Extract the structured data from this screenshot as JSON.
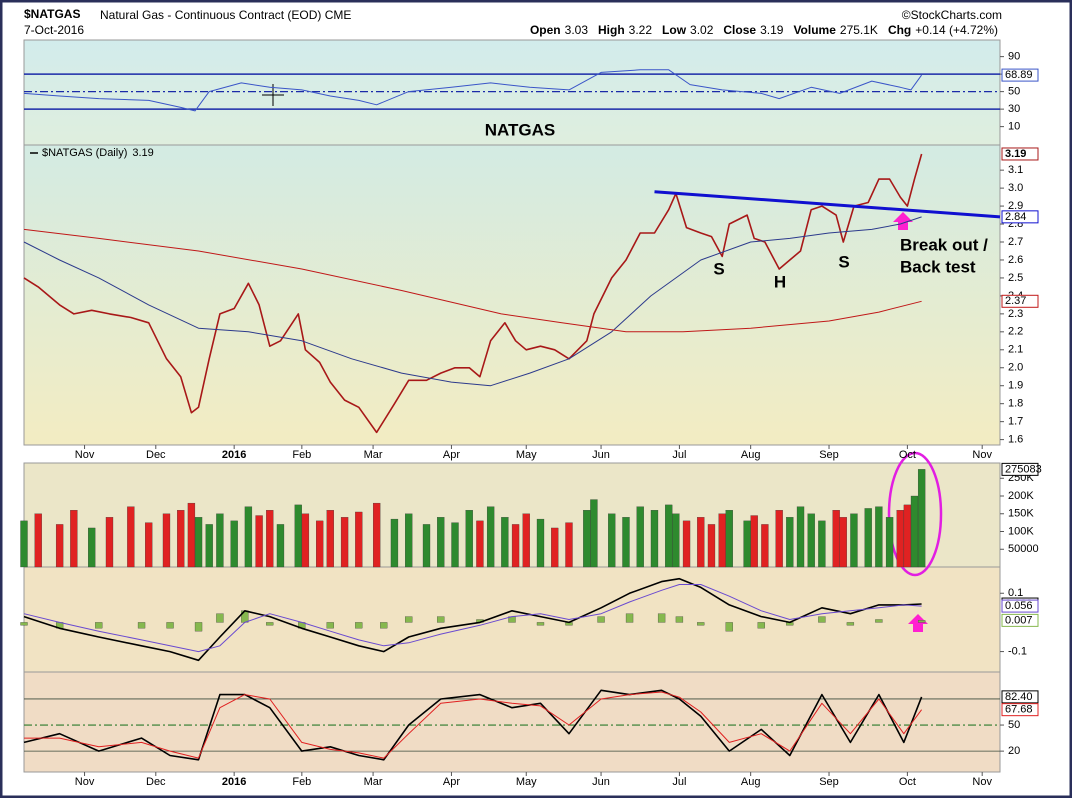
{
  "header": {
    "symbol": "$NATGAS",
    "name": "Natural Gas - Continuous Contract (EOD) CME",
    "date": "7-Oct-2016",
    "source": "©StockCharts.com",
    "quote": [
      {
        "label": "Open",
        "value": "3.03"
      },
      {
        "label": "High",
        "value": "3.22"
      },
      {
        "label": "Low",
        "value": "3.02"
      },
      {
        "label": "Close",
        "value": "3.19"
      },
      {
        "label": "Volume",
        "value": "275.1K"
      },
      {
        "label": "Chg",
        "value": "+0.14 (+4.72%)"
      }
    ]
  },
  "chart_data": [
    {
      "type": "line",
      "annotations": [
        "NATGAS"
      ],
      "xlim": [
        0,
        274
      ],
      "ylim": [
        -11,
        109
      ],
      "yticks": [
        10,
        30,
        50,
        70,
        90
      ],
      "bands": [
        30,
        70
      ],
      "midline": 50,
      "series": [
        {
          "color": "#3a55c8",
          "x": [
            0,
            10,
            21,
            35,
            44,
            48,
            52,
            61,
            69,
            78,
            86,
            94,
            99,
            108,
            120,
            131,
            142,
            153,
            162,
            173,
            181,
            187,
            196,
            207,
            212,
            221,
            229,
            238,
            246,
            249,
            252
          ],
          "values": [
            48,
            45,
            42,
            40,
            32,
            28,
            50,
            60,
            55,
            52,
            45,
            40,
            35,
            50,
            55,
            60,
            55,
            52,
            72,
            75,
            75,
            58,
            52,
            48,
            42,
            55,
            48,
            62,
            55,
            52,
            68.89
          ]
        }
      ]
    },
    {
      "type": "line",
      "annotations": [
        "S",
        "H",
        "S",
        "Break out /",
        "Back test"
      ],
      "xlim": [
        0,
        274
      ],
      "ylim": [
        1.57,
        3.24
      ],
      "yticks": [
        1.6,
        1.7,
        1.8,
        1.9,
        {
          "value": 2,
          "label": "2.0"
        },
        2.1,
        2.2,
        2.3,
        2.4,
        2.5,
        2.6,
        2.7,
        2.8,
        2.9,
        {
          "value": 3,
          "label": "3.0"
        },
        3.1
      ],
      "xticks": [
        {
          "value": 17,
          "label": "Nov"
        },
        {
          "value": 37,
          "label": "Dec"
        },
        {
          "value": 59,
          "label": "2016"
        },
        {
          "value": 78,
          "label": "Feb"
        },
        {
          "value": 98,
          "label": "Mar"
        },
        {
          "value": 120,
          "label": "Apr"
        },
        {
          "value": 141,
          "label": "May"
        },
        {
          "value": 162,
          "label": "Jun"
        },
        {
          "value": 184,
          "label": "Jul"
        },
        {
          "value": 204,
          "label": "Aug"
        },
        {
          "value": 226,
          "label": "Sep"
        },
        {
          "value": 248,
          "label": "Oct"
        },
        {
          "value": 269,
          "label": "Nov"
        }
      ],
      "series": [
        {
          "name": "$NATGAS (Daily)",
          "color": "#a81818",
          "width": 1.6,
          "x": [
            0,
            4,
            10,
            14,
            19,
            24,
            30,
            35,
            40,
            44,
            47,
            49,
            52,
            55,
            59,
            63,
            66,
            69,
            72,
            77,
            79,
            83,
            86,
            90,
            94,
            99,
            104,
            108,
            113,
            117,
            121,
            125,
            128,
            131,
            135,
            138,
            141,
            145,
            149,
            153,
            158,
            160,
            165,
            169,
            173,
            177,
            181,
            183,
            186,
            190,
            193,
            196,
            198,
            203,
            205,
            208,
            212,
            215,
            218,
            221,
            224,
            228,
            230,
            233,
            237,
            240,
            243,
            246,
            248,
            250,
            252
          ],
          "values": [
            2.5,
            2.45,
            2.35,
            2.3,
            2.32,
            2.3,
            2.28,
            2.25,
            2.05,
            1.95,
            1.75,
            1.78,
            2.05,
            2.3,
            2.33,
            2.47,
            2.35,
            2.12,
            2.15,
            2.3,
            2.1,
            2.03,
            1.92,
            1.82,
            1.78,
            1.64,
            1.8,
            1.93,
            1.93,
            1.97,
            2.0,
            2.0,
            1.95,
            2.15,
            2.25,
            2.15,
            2.1,
            2.12,
            2.1,
            2.05,
            2.15,
            2.3,
            2.5,
            2.6,
            2.75,
            2.75,
            2.88,
            2.97,
            2.78,
            2.75,
            2.73,
            2.62,
            2.8,
            2.85,
            2.72,
            2.7,
            2.55,
            2.6,
            2.65,
            2.88,
            2.9,
            2.85,
            2.7,
            2.9,
            2.92,
            3.05,
            3.05,
            2.95,
            2.9,
            3.05,
            3.19
          ]
        },
        {
          "color": "#2c3a8c",
          "width": 1,
          "x": [
            0,
            10,
            21,
            35,
            49,
            63,
            78,
            92,
            106,
            120,
            131,
            142,
            153,
            165,
            176,
            190,
            204,
            215,
            226,
            238,
            246,
            252
          ],
          "values": [
            2.7,
            2.6,
            2.5,
            2.35,
            2.22,
            2.2,
            2.15,
            2.05,
            1.97,
            1.92,
            1.9,
            1.97,
            2.05,
            2.2,
            2.4,
            2.6,
            2.7,
            2.72,
            2.75,
            2.77,
            2.8,
            2.84
          ]
        },
        {
          "color": "#c01818",
          "width": 1,
          "x": [
            0,
            21,
            49,
            78,
            106,
            134,
            151,
            169,
            185,
            204,
            226,
            240,
            252
          ],
          "values": [
            2.77,
            2.72,
            2.65,
            2.55,
            2.43,
            2.3,
            2.25,
            2.2,
            2.2,
            2.22,
            2.26,
            2.31,
            2.37
          ]
        },
        {
          "color": "#1010d0",
          "width": 3,
          "x": [
            177,
            274
          ],
          "values": [
            2.98,
            2.84
          ]
        }
      ]
    },
    {
      "type": "bar",
      "xlim": [
        0,
        274
      ],
      "ylim": [
        0,
        293000
      ],
      "yticks": [
        50000,
        {
          "value": 100000,
          "label": "100K"
        },
        {
          "value": 150000,
          "label": "150K"
        },
        {
          "value": 200000,
          "label": "200K"
        },
        {
          "value": 250000,
          "label": "250K"
        }
      ],
      "up_color": "#2e8a2e",
      "down_color": "#e02222",
      "series": [
        {
          "color": "#2e8a2e",
          "x": [
            0,
            4,
            10,
            14,
            19,
            24,
            30,
            35,
            40,
            44,
            47,
            49,
            52,
            55,
            59,
            63,
            66,
            69,
            72,
            77,
            79,
            83,
            86,
            90,
            94,
            99,
            104,
            108,
            113,
            117,
            121,
            125,
            128,
            131,
            135,
            138,
            141,
            145,
            149,
            153,
            158,
            160,
            165,
            169,
            173,
            177,
            181,
            183,
            186,
            190,
            193,
            196,
            198,
            203,
            205,
            208,
            212,
            215,
            218,
            221,
            224,
            228,
            230,
            233,
            237,
            240,
            243,
            246,
            248,
            250,
            252
          ],
          "values": [
            130000,
            150000,
            120000,
            160000,
            110000,
            140000,
            170000,
            125000,
            150000,
            160000,
            180000,
            140000,
            120000,
            150000,
            130000,
            170000,
            145000,
            160000,
            120000,
            175000,
            150000,
            130000,
            160000,
            140000,
            155000,
            180000,
            135000,
            150000,
            120000,
            140000,
            125000,
            160000,
            130000,
            170000,
            140000,
            120000,
            150000,
            135000,
            110000,
            125000,
            160000,
            190000,
            150000,
            140000,
            170000,
            160000,
            175000,
            150000,
            130000,
            140000,
            120000,
            150000,
            160000,
            130000,
            145000,
            120000,
            160000,
            140000,
            170000,
            150000,
            130000,
            160000,
            140000,
            150000,
            165000,
            170000,
            140000,
            160000,
            175000,
            200000,
            275083
          ]
        }
      ]
    },
    {
      "type": "macd",
      "xlim": [
        0,
        274
      ],
      "ylim": [
        -0.17,
        0.19
      ],
      "yticks": [
        -0.1,
        0.1
      ],
      "series": [
        {
          "kind": "histogram",
          "color": "#86b84e",
          "x": [
            0,
            10,
            21,
            33,
            41,
            49,
            55,
            62,
            69,
            78,
            86,
            94,
            101,
            108,
            117,
            128,
            137,
            145,
            153,
            162,
            170,
            179,
            184,
            190,
            198,
            207,
            215,
            224,
            232,
            240,
            247,
            252
          ],
          "values": [
            -0.01,
            -0.02,
            -0.02,
            -0.02,
            -0.02,
            -0.03,
            0.03,
            0.04,
            -0.01,
            -0.02,
            -0.02,
            -0.02,
            -0.02,
            0.02,
            0.02,
            0.01,
            0.02,
            -0.01,
            -0.01,
            0.02,
            0.03,
            0.03,
            0.02,
            -0.01,
            -0.03,
            -0.02,
            -0.01,
            0.02,
            -0.01,
            0.01,
            0,
            0.007
          ]
        },
        {
          "color": "#000000",
          "width": 1.6,
          "x": [
            0,
            10,
            21,
            33,
            41,
            49,
            55,
            62,
            69,
            78,
            86,
            94,
            101,
            108,
            117,
            128,
            137,
            145,
            153,
            162,
            170,
            179,
            184,
            190,
            198,
            207,
            215,
            224,
            232,
            240,
            247,
            252
          ],
          "values": [
            0.02,
            -0.02,
            -0.05,
            -0.08,
            -0.1,
            -0.13,
            -0.05,
            0.04,
            0.02,
            -0.02,
            -0.05,
            -0.08,
            -0.1,
            -0.05,
            -0.02,
            0,
            0.04,
            0.02,
            0,
            0.05,
            0.1,
            0.14,
            0.15,
            0.12,
            0.06,
            0.02,
            0,
            0.05,
            0.03,
            0.06,
            0.06,
            0.063
          ]
        },
        {
          "color": "#6a4ad0",
          "width": 1,
          "x": [
            0,
            10,
            21,
            33,
            41,
            49,
            55,
            62,
            69,
            78,
            86,
            94,
            101,
            108,
            117,
            128,
            137,
            145,
            153,
            162,
            170,
            179,
            184,
            190,
            198,
            207,
            215,
            224,
            232,
            240,
            247,
            252
          ],
          "values": [
            0.03,
            0,
            -0.03,
            -0.06,
            -0.08,
            -0.1,
            -0.08,
            0,
            0.03,
            0,
            -0.03,
            -0.06,
            -0.08,
            -0.07,
            -0.04,
            -0.01,
            0.02,
            0.03,
            0.01,
            0.03,
            0.07,
            0.11,
            0.13,
            0.13,
            0.09,
            0.04,
            0.01,
            0.03,
            0.04,
            0.05,
            0.06,
            0.056
          ]
        }
      ]
    },
    {
      "type": "line",
      "xlim": [
        0,
        274
      ],
      "ylim": [
        -4,
        111
      ],
      "yticks": [
        20,
        50
      ],
      "bands": [
        20,
        80
      ],
      "midline": 50,
      "xticks": [
        {
          "value": 17,
          "label": "Nov"
        },
        {
          "value": 37,
          "label": "Dec"
        },
        {
          "value": 59,
          "label": "2016"
        },
        {
          "value": 78,
          "label": "Feb"
        },
        {
          "value": 98,
          "label": "Mar"
        },
        {
          "value": 120,
          "label": "Apr"
        },
        {
          "value": 141,
          "label": "May"
        },
        {
          "value": 162,
          "label": "Jun"
        },
        {
          "value": 184,
          "label": "Jul"
        },
        {
          "value": 204,
          "label": "Aug"
        },
        {
          "value": 226,
          "label": "Sep"
        },
        {
          "value": 248,
          "label": "Oct"
        },
        {
          "value": 269,
          "label": "Nov"
        }
      ],
      "series": [
        {
          "color": "#000000",
          "width": 1.6,
          "x": [
            0,
            10,
            21,
            33,
            41,
            49,
            55,
            62,
            69,
            78,
            86,
            94,
            101,
            108,
            117,
            128,
            137,
            145,
            153,
            162,
            170,
            179,
            184,
            190,
            198,
            207,
            215,
            224,
            232,
            240,
            247,
            252
          ],
          "values": [
            30,
            40,
            20,
            35,
            15,
            10,
            85,
            85,
            70,
            20,
            25,
            15,
            10,
            50,
            80,
            85,
            70,
            75,
            40,
            90,
            85,
            90,
            80,
            60,
            20,
            45,
            15,
            85,
            30,
            85,
            30,
            82.4
          ],
          "value_labels": [
            null,
            null,
            null,
            null,
            null,
            null,
            null,
            null,
            null,
            null,
            null,
            null,
            null,
            null,
            null,
            null,
            null,
            null,
            null,
            null,
            null,
            null,
            null,
            null,
            null,
            null,
            null,
            null,
            null,
            null,
            null,
            "82.40"
          ]
        },
        {
          "color": "#e02020",
          "width": 1,
          "x": [
            0,
            10,
            21,
            33,
            41,
            49,
            55,
            62,
            69,
            78,
            86,
            94,
            101,
            108,
            117,
            128,
            137,
            145,
            153,
            162,
            170,
            179,
            184,
            190,
            198,
            207,
            215,
            224,
            232,
            240,
            247,
            252
          ],
          "values": [
            35,
            35,
            25,
            30,
            20,
            12,
            70,
            85,
            80,
            30,
            22,
            18,
            12,
            40,
            75,
            80,
            75,
            72,
            50,
            80,
            85,
            88,
            82,
            65,
            30,
            40,
            20,
            75,
            40,
            80,
            40,
            67.68
          ]
        }
      ]
    }
  ]
}
